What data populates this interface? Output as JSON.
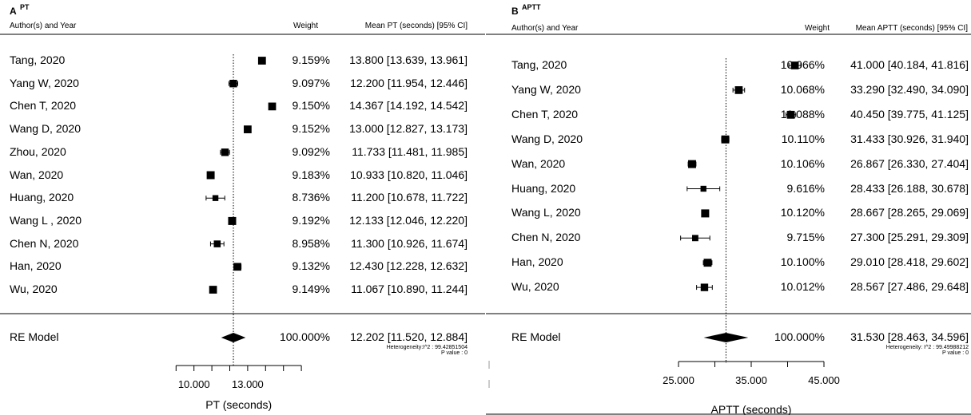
{
  "panels": [
    {
      "tag": "A",
      "subtitle": "PT",
      "headers": {
        "author": "Author(s) and Year",
        "weight": "Weight",
        "estimate": "Mean PT (seconds) [95% CI]"
      },
      "studies": [
        {
          "label": "Tang, 2020",
          "weight": "9.159%",
          "ci": "13.800 [13.639, 13.961]",
          "mean": 13.8,
          "lower": 13.639,
          "upper": 13.961
        },
        {
          "label": "Yang W, 2020",
          "weight": "9.097%",
          "ci": "12.200 [11.954, 12.446]",
          "mean": 12.2,
          "lower": 11.954,
          "upper": 12.446
        },
        {
          "label": "Chen T, 2020",
          "weight": "9.150%",
          "ci": "14.367 [14.192, 14.542]",
          "mean": 14.367,
          "lower": 14.192,
          "upper": 14.542
        },
        {
          "label": "Wang D, 2020",
          "weight": "9.152%",
          "ci": "13.000 [12.827, 13.173]",
          "mean": 13.0,
          "lower": 12.827,
          "upper": 13.173
        },
        {
          "label": "Zhou, 2020",
          "weight": "9.092%",
          "ci": "11.733 [11.481, 11.985]",
          "mean": 11.733,
          "lower": 11.481,
          "upper": 11.985
        },
        {
          "label": "Wan, 2020",
          "weight": "9.183%",
          "ci": "10.933 [10.820, 11.046]",
          "mean": 10.933,
          "lower": 10.82,
          "upper": 11.046
        },
        {
          "label": "Huang, 2020",
          "weight": "8.736%",
          "ci": "11.200 [10.678, 11.722]",
          "mean": 11.2,
          "lower": 10.678,
          "upper": 11.722
        },
        {
          "label": "Wang L , 2020",
          "weight": "9.192%",
          "ci": "12.133 [12.046, 12.220]",
          "mean": 12.133,
          "lower": 12.046,
          "upper": 12.22
        },
        {
          "label": "Chen N, 2020",
          "weight": "8.958%",
          "ci": "11.300 [10.926, 11.674]",
          "mean": 11.3,
          "lower": 10.926,
          "upper": 11.674
        },
        {
          "label": "Han, 2020",
          "weight": "9.132%",
          "ci": "12.430 [12.228, 12.632]",
          "mean": 12.43,
          "lower": 12.228,
          "upper": 12.632
        },
        {
          "label": "Wu, 2020",
          "weight": "9.149%",
          "ci": "11.067 [10.890, 11.244]",
          "mean": 11.067,
          "lower": 10.89,
          "upper": 11.244
        }
      ],
      "model": {
        "label": "RE Model",
        "weight": "100.000%",
        "ci": "12.202 [11.520, 12.884]",
        "mean": 12.202,
        "lower": 11.52,
        "upper": 12.884
      },
      "heterogeneity": "Heterogeneity:I^2 : 99.42851504",
      "pvalue": "P value : 0",
      "axis": {
        "label": "PT (seconds)",
        "min": 9.0,
        "max": 16.0,
        "tick_step": 1.0,
        "tick_labels": [
          {
            "value": 10.0,
            "text": "10.000"
          },
          {
            "value": 13.0,
            "text": "13.000"
          }
        ]
      }
    },
    {
      "tag": "B",
      "subtitle": "APTT",
      "headers": {
        "author": "Author(s) and Year",
        "weight": "Weight",
        "estimate": "Mean APTT (seconds) [95% CI]"
      },
      "studies": [
        {
          "label": "Tang, 2020",
          "weight": "10.066%",
          "ci": "41.000 [40.184, 41.816]",
          "mean": 41.0,
          "lower": 40.184,
          "upper": 41.816
        },
        {
          "label": "Yang W, 2020",
          "weight": "10.068%",
          "ci": "33.290 [32.490, 34.090]",
          "mean": 33.29,
          "lower": 32.49,
          "upper": 34.09
        },
        {
          "label": "Chen T, 2020",
          "weight": "10.088%",
          "ci": "40.450 [39.775, 41.125]",
          "mean": 40.45,
          "lower": 39.775,
          "upper": 41.125
        },
        {
          "label": "Wang D, 2020",
          "weight": "10.110%",
          "ci": "31.433 [30.926, 31.940]",
          "mean": 31.433,
          "lower": 30.926,
          "upper": 31.94
        },
        {
          "label": "Wan, 2020",
          "weight": "10.106%",
          "ci": "26.867 [26.330, 27.404]",
          "mean": 26.867,
          "lower": 26.33,
          "upper": 27.404
        },
        {
          "label": "Huang, 2020",
          "weight": "9.616%",
          "ci": "28.433 [26.188, 30.678]",
          "mean": 28.433,
          "lower": 26.188,
          "upper": 30.678
        },
        {
          "label": "Wang L, 2020",
          "weight": "10.120%",
          "ci": "28.667 [28.265, 29.069]",
          "mean": 28.667,
          "lower": 28.265,
          "upper": 29.069
        },
        {
          "label": "Chen N, 2020",
          "weight": "9.715%",
          "ci": "27.300 [25.291, 29.309]",
          "mean": 27.3,
          "lower": 25.291,
          "upper": 29.309
        },
        {
          "label": "Han, 2020",
          "weight": "10.100%",
          "ci": "29.010 [28.418, 29.602]",
          "mean": 29.01,
          "lower": 28.418,
          "upper": 29.602
        },
        {
          "label": "Wu, 2020",
          "weight": "10.012%",
          "ci": "28.567 [27.486, 29.648]",
          "mean": 28.567,
          "lower": 27.486,
          "upper": 29.648
        }
      ],
      "model": {
        "label": "RE Model",
        "weight": "100.000%",
        "ci": "31.530 [28.463, 34.596]",
        "mean": 31.53,
        "lower": 28.463,
        "upper": 34.596
      },
      "heterogeneity": "Heterogeneity: I^2 : 99.49988212",
      "pvalue": "P value : 0",
      "axis": {
        "label": "APTT (seconds)",
        "min": 25.0,
        "max": 45.0,
        "tick_step": 5.0,
        "tick_labels": [
          {
            "value": 25.0,
            "text": "25.000"
          },
          {
            "value": 35.0,
            "text": "35.000"
          },
          {
            "value": 45.0,
            "text": "45.000"
          }
        ]
      }
    }
  ],
  "chart_data": [
    {
      "type": "forest",
      "title": "PT",
      "xlabel": "PT (seconds)",
      "reference_line": 12.202,
      "categories": [
        "Tang, 2020",
        "Yang W, 2020",
        "Chen T, 2020",
        "Wang D, 2020",
        "Zhou, 2020",
        "Wan, 2020",
        "Huang, 2020",
        "Wang L , 2020",
        "Chen N, 2020",
        "Han, 2020",
        "Wu, 2020",
        "RE Model"
      ],
      "mean": [
        13.8,
        12.2,
        14.367,
        13.0,
        11.733,
        10.933,
        11.2,
        12.133,
        11.3,
        12.43,
        11.067,
        12.202
      ],
      "lower": [
        13.639,
        11.954,
        14.192,
        12.827,
        11.481,
        10.82,
        10.678,
        12.046,
        10.926,
        12.228,
        10.89,
        11.52
      ],
      "upper": [
        13.961,
        12.446,
        14.542,
        13.173,
        11.985,
        11.046,
        11.722,
        12.22,
        11.674,
        12.632,
        11.244,
        12.884
      ],
      "weight_pct": [
        9.159,
        9.097,
        9.15,
        9.152,
        9.092,
        9.183,
        8.736,
        9.192,
        8.958,
        9.132,
        9.149,
        100.0
      ],
      "xlim": [
        9.0,
        16.0
      ]
    },
    {
      "type": "forest",
      "title": "APTT",
      "xlabel": "APTT (seconds)",
      "reference_line": 31.53,
      "categories": [
        "Tang, 2020",
        "Yang W, 2020",
        "Chen T, 2020",
        "Wang D, 2020",
        "Wan, 2020",
        "Huang, 2020",
        "Wang L, 2020",
        "Chen N, 2020",
        "Han, 2020",
        "Wu, 2020",
        "RE Model"
      ],
      "mean": [
        41.0,
        33.29,
        40.45,
        31.433,
        26.867,
        28.433,
        28.667,
        27.3,
        29.01,
        28.567,
        31.53
      ],
      "lower": [
        40.184,
        32.49,
        39.775,
        30.926,
        26.33,
        26.188,
        28.265,
        25.291,
        28.418,
        27.486,
        28.463
      ],
      "upper": [
        41.816,
        34.09,
        41.125,
        31.94,
        27.404,
        30.678,
        29.069,
        29.309,
        29.602,
        29.648,
        34.596
      ],
      "weight_pct": [
        10.066,
        10.068,
        10.088,
        10.11,
        10.106,
        9.616,
        10.12,
        9.715,
        10.1,
        10.012,
        100.0
      ],
      "xlim": [
        25.0,
        45.0
      ]
    }
  ]
}
